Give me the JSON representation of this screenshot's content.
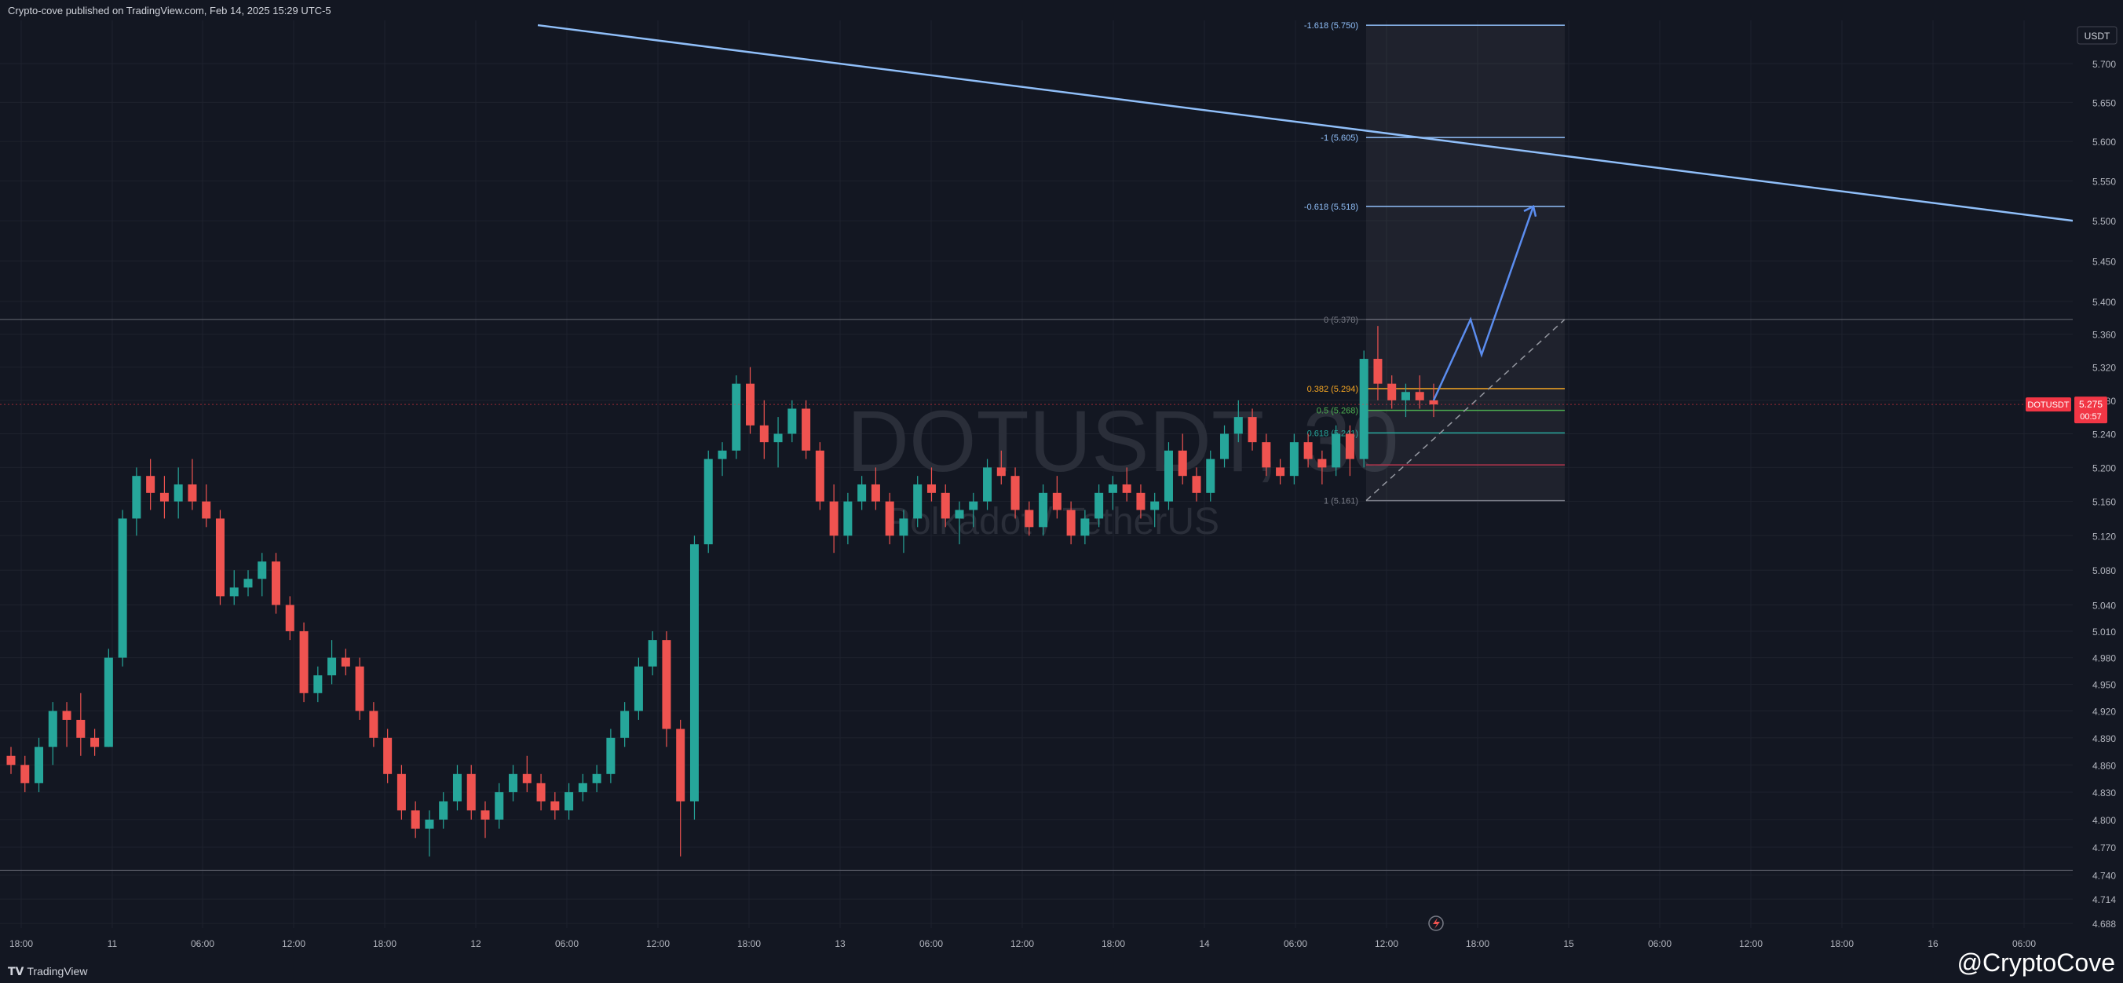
{
  "header": {
    "published_text": "Crypto-cove published on TradingView.com, Feb 14, 2025 15:29 UTC-5"
  },
  "footer": {
    "logo_text": "TradingView",
    "logo_mark": "TV",
    "handle": "@CryptoCove"
  },
  "colors": {
    "background": "#131722",
    "up": "#26a69a",
    "down": "#ef5350",
    "trendline": "#90bff9",
    "projection": "#5b8def",
    "fib_blue": "#90bff9",
    "fib_orange": "#f5a623",
    "fib_green": "#4caf50",
    "fib_teal": "#26a69a",
    "fib_red": "#b2354d",
    "price_tag": "#f23645"
  },
  "watermark": {
    "symbol": "DOTUSDT, 30",
    "subtitle": "Polkadot / TetherUS"
  },
  "chart_data": {
    "type": "candlestick",
    "symbol": "DOTUSDT",
    "interval": "30",
    "quote_currency": "USDT",
    "ylim": [
      4.688,
      5.75
    ],
    "y_scale": "log",
    "y_ticks": [
      "5.700",
      "5.650",
      "5.600",
      "5.550",
      "5.500",
      "5.450",
      "5.400",
      "5.360",
      "5.320",
      "5.280",
      "5.240",
      "5.200",
      "5.160",
      "5.120",
      "5.080",
      "5.040",
      "5.010",
      "4.980",
      "4.950",
      "4.920",
      "4.890",
      "4.860",
      "4.830",
      "4.800",
      "4.770",
      "4.740",
      "4.714",
      "4.688"
    ],
    "x_ticks": [
      "18:00",
      "11",
      "06:00",
      "12:00",
      "18:00",
      "12",
      "06:00",
      "12:00",
      "18:00",
      "13",
      "06:00",
      "12:00",
      "18:00",
      "14",
      "06:00",
      "12:00",
      "18:00",
      "15",
      "06:00",
      "12:00",
      "18:00",
      "16",
      "06:00"
    ],
    "last_price": {
      "label": "DOTUSDT",
      "value": "5.275",
      "countdown": "00:57"
    },
    "candles_ohlc": [
      [
        4.87,
        4.88,
        4.85,
        4.86
      ],
      [
        4.86,
        4.87,
        4.83,
        4.84
      ],
      [
        4.84,
        4.89,
        4.83,
        4.88
      ],
      [
        4.88,
        4.93,
        4.86,
        4.92
      ],
      [
        4.92,
        4.93,
        4.88,
        4.91
      ],
      [
        4.91,
        4.94,
        4.87,
        4.89
      ],
      [
        4.89,
        4.9,
        4.87,
        4.88
      ],
      [
        4.88,
        4.99,
        4.88,
        4.98
      ],
      [
        4.98,
        5.15,
        4.97,
        5.14
      ],
      [
        5.14,
        5.2,
        5.12,
        5.19
      ],
      [
        5.19,
        5.21,
        5.15,
        5.17
      ],
      [
        5.17,
        5.19,
        5.14,
        5.16
      ],
      [
        5.16,
        5.2,
        5.14,
        5.18
      ],
      [
        5.18,
        5.21,
        5.15,
        5.16
      ],
      [
        5.16,
        5.18,
        5.13,
        5.14
      ],
      [
        5.14,
        5.15,
        5.04,
        5.05
      ],
      [
        5.05,
        5.08,
        5.04,
        5.06
      ],
      [
        5.06,
        5.08,
        5.05,
        5.07
      ],
      [
        5.07,
        5.1,
        5.05,
        5.09
      ],
      [
        5.09,
        5.1,
        5.03,
        5.04
      ],
      [
        5.04,
        5.05,
        5.0,
        5.01
      ],
      [
        5.01,
        5.02,
        4.93,
        4.94
      ],
      [
        4.94,
        4.97,
        4.93,
        4.96
      ],
      [
        4.96,
        5.0,
        4.95,
        4.98
      ],
      [
        4.98,
        4.99,
        4.96,
        4.97
      ],
      [
        4.97,
        4.98,
        4.91,
        4.92
      ],
      [
        4.92,
        4.93,
        4.88,
        4.89
      ],
      [
        4.89,
        4.9,
        4.84,
        4.85
      ],
      [
        4.85,
        4.86,
        4.8,
        4.81
      ],
      [
        4.81,
        4.82,
        4.78,
        4.79
      ],
      [
        4.79,
        4.81,
        4.76,
        4.8
      ],
      [
        4.8,
        4.83,
        4.79,
        4.82
      ],
      [
        4.82,
        4.86,
        4.81,
        4.85
      ],
      [
        4.85,
        4.86,
        4.8,
        4.81
      ],
      [
        4.81,
        4.82,
        4.78,
        4.8
      ],
      [
        4.8,
        4.84,
        4.79,
        4.83
      ],
      [
        4.83,
        4.86,
        4.82,
        4.85
      ],
      [
        4.85,
        4.87,
        4.83,
        4.84
      ],
      [
        4.84,
        4.85,
        4.81,
        4.82
      ],
      [
        4.82,
        4.83,
        4.8,
        4.81
      ],
      [
        4.81,
        4.84,
        4.8,
        4.83
      ],
      [
        4.83,
        4.85,
        4.82,
        4.84
      ],
      [
        4.84,
        4.86,
        4.83,
        4.85
      ],
      [
        4.85,
        4.9,
        4.84,
        4.89
      ],
      [
        4.89,
        4.93,
        4.88,
        4.92
      ],
      [
        4.92,
        4.98,
        4.91,
        4.97
      ],
      [
        4.97,
        5.01,
        4.96,
        5.0
      ],
      [
        5.0,
        5.01,
        4.88,
        4.9
      ],
      [
        4.9,
        4.91,
        4.76,
        4.82
      ],
      [
        4.82,
        5.12,
        4.8,
        5.11
      ],
      [
        5.11,
        5.22,
        5.1,
        5.21
      ],
      [
        5.21,
        5.23,
        5.19,
        5.22
      ],
      [
        5.22,
        5.31,
        5.21,
        5.3
      ],
      [
        5.3,
        5.32,
        5.24,
        5.25
      ],
      [
        5.25,
        5.28,
        5.21,
        5.23
      ],
      [
        5.23,
        5.26,
        5.2,
        5.24
      ],
      [
        5.24,
        5.28,
        5.23,
        5.27
      ],
      [
        5.27,
        5.28,
        5.21,
        5.22
      ],
      [
        5.22,
        5.23,
        5.15,
        5.16
      ],
      [
        5.16,
        5.18,
        5.1,
        5.12
      ],
      [
        5.12,
        5.17,
        5.11,
        5.16
      ],
      [
        5.16,
        5.19,
        5.15,
        5.18
      ],
      [
        5.18,
        5.2,
        5.15,
        5.16
      ],
      [
        5.16,
        5.17,
        5.11,
        5.12
      ],
      [
        5.12,
        5.15,
        5.1,
        5.14
      ],
      [
        5.14,
        5.19,
        5.13,
        5.18
      ],
      [
        5.18,
        5.2,
        5.16,
        5.17
      ],
      [
        5.17,
        5.18,
        5.13,
        5.14
      ],
      [
        5.14,
        5.16,
        5.11,
        5.15
      ],
      [
        5.15,
        5.17,
        5.13,
        5.16
      ],
      [
        5.16,
        5.21,
        5.15,
        5.2
      ],
      [
        5.2,
        5.22,
        5.18,
        5.19
      ],
      [
        5.19,
        5.2,
        5.14,
        5.15
      ],
      [
        5.15,
        5.16,
        5.12,
        5.13
      ],
      [
        5.13,
        5.18,
        5.12,
        5.17
      ],
      [
        5.17,
        5.19,
        5.14,
        5.15
      ],
      [
        5.15,
        5.16,
        5.11,
        5.12
      ],
      [
        5.12,
        5.15,
        5.11,
        5.14
      ],
      [
        5.14,
        5.18,
        5.13,
        5.17
      ],
      [
        5.17,
        5.19,
        5.15,
        5.18
      ],
      [
        5.18,
        5.2,
        5.16,
        5.17
      ],
      [
        5.17,
        5.18,
        5.14,
        5.15
      ],
      [
        5.15,
        5.17,
        5.13,
        5.16
      ],
      [
        5.16,
        5.23,
        5.15,
        5.22
      ],
      [
        5.22,
        5.24,
        5.18,
        5.19
      ],
      [
        5.19,
        5.2,
        5.16,
        5.17
      ],
      [
        5.17,
        5.22,
        5.16,
        5.21
      ],
      [
        5.21,
        5.25,
        5.2,
        5.24
      ],
      [
        5.24,
        5.28,
        5.23,
        5.26
      ],
      [
        5.26,
        5.27,
        5.22,
        5.23
      ],
      [
        5.23,
        5.24,
        5.19,
        5.2
      ],
      [
        5.2,
        5.21,
        5.18,
        5.19
      ],
      [
        5.19,
        5.24,
        5.18,
        5.23
      ],
      [
        5.23,
        5.24,
        5.2,
        5.21
      ],
      [
        5.21,
        5.22,
        5.18,
        5.2
      ],
      [
        5.2,
        5.25,
        5.19,
        5.24
      ],
      [
        5.24,
        5.25,
        5.19,
        5.21
      ],
      [
        5.21,
        5.34,
        5.2,
        5.33
      ],
      [
        5.33,
        5.37,
        5.28,
        5.3
      ],
      [
        5.3,
        5.31,
        5.27,
        5.28
      ],
      [
        5.28,
        5.3,
        5.26,
        5.29
      ],
      [
        5.29,
        5.31,
        5.27,
        5.28
      ],
      [
        5.28,
        5.3,
        5.26,
        5.275
      ]
    ],
    "fibonacci": {
      "levels": [
        {
          "ratio": "-1.618",
          "price": "5.750",
          "label": "-1.618 (5.750)",
          "color": "fib_blue"
        },
        {
          "ratio": "-1",
          "price": "5.605",
          "label": "-1 (5.605)",
          "color": "fib_blue"
        },
        {
          "ratio": "-0.618",
          "price": "5.518",
          "label": "-0.618 (5.518)",
          "color": "fib_blue"
        },
        {
          "ratio": "0",
          "price": "5.378",
          "label": "0 (5.378)",
          "color": "gray"
        },
        {
          "ratio": "0.382",
          "price": "5.294",
          "label": "0.382 (5.294)",
          "color": "fib_orange"
        },
        {
          "ratio": "0.5",
          "price": "5.268",
          "label": "0.5 (5.268)",
          "color": "fib_green"
        },
        {
          "ratio": "0.618",
          "price": "5.241",
          "label": "0.618 (5.241)",
          "color": "fib_teal"
        },
        {
          "ratio": "0.786",
          "price": "5.203",
          "label": "",
          "color": "fib_red"
        },
        {
          "ratio": "1",
          "price": "5.161",
          "label": "1 (5.161)",
          "color": "gray"
        }
      ]
    },
    "horizontal_lines": [
      5.378,
      4.745
    ],
    "trendline": {
      "from": {
        "price": 5.75
      },
      "to": {
        "price": 5.5
      }
    },
    "projection_path": [
      5.28,
      5.378,
      5.335,
      5.518
    ]
  }
}
